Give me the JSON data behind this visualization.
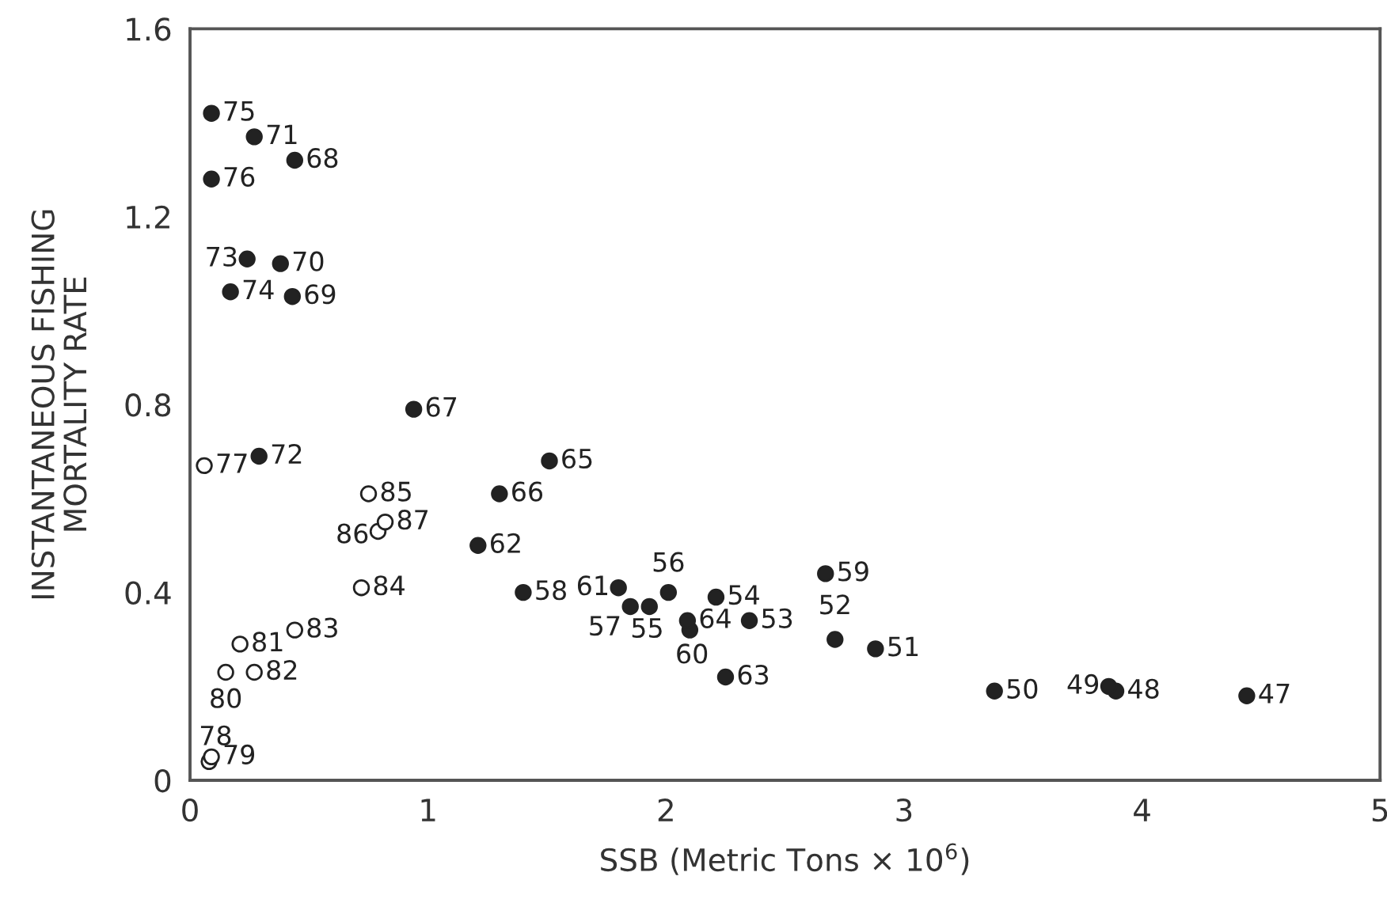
{
  "chart_data": {
    "type": "scatter",
    "xlabel": "SSB (Metric Tons × 10$^{6}$)",
    "ylabel": "INSTANTANEOUS FISHING\nMORTALITY RATE",
    "series": [
      {
        "color": "#222222",
        "x": [
          4.44,
          3.89,
          3.86,
          3.38,
          2.88,
          2.71,
          2.35,
          2.21,
          1.93,
          2.01,
          1.85,
          1.4,
          2.67,
          2.1,
          1.8,
          1.21,
          2.25,
          2.09,
          1.51,
          1.3,
          0.94,
          0.44,
          0.43,
          0.38,
          0.27,
          0.29,
          0.24,
          0.17,
          0.09,
          0.09
        ],
        "values": [
          0.18,
          0.19,
          0.2,
          0.19,
          0.28,
          0.3,
          0.34,
          0.39,
          0.37,
          0.4,
          0.37,
          0.4,
          0.44,
          0.32,
          0.41,
          0.5,
          0.22,
          0.34,
          0.68,
          0.61,
          0.79,
          1.32,
          1.03,
          1.1,
          1.37,
          0.69,
          1.11,
          1.04,
          1.42,
          1.28
        ]
      },
      {
        "color": "#ffffff",
        "x": [
          0.06,
          0.08,
          0.09,
          0.15,
          0.21,
          0.27,
          0.44,
          0.72,
          0.75,
          0.79,
          0.82
        ],
        "values": [
          0.67,
          0.04,
          0.05,
          0.23,
          0.29,
          0.23,
          0.32,
          0.41,
          0.61,
          0.53,
          0.55
        ]
      }
    ],
    "annotations": [
      {
        "text": "47",
        "x": 4.44,
        "y": 0.18
      },
      {
        "text": "48",
        "x": 3.89,
        "y": 0.19
      },
      {
        "text": "49",
        "x": 3.86,
        "y": 0.2
      },
      {
        "text": "50",
        "x": 3.38,
        "y": 0.19
      },
      {
        "text": "51",
        "x": 2.88,
        "y": 0.28
      },
      {
        "text": "52",
        "x": 2.71,
        "y": 0.3
      },
      {
        "text": "53",
        "x": 2.35,
        "y": 0.34
      },
      {
        "text": "54",
        "x": 2.21,
        "y": 0.39
      },
      {
        "text": "55",
        "x": 1.93,
        "y": 0.37
      },
      {
        "text": "56",
        "x": 2.01,
        "y": 0.4
      },
      {
        "text": "57",
        "x": 1.85,
        "y": 0.37
      },
      {
        "text": "58",
        "x": 1.4,
        "y": 0.4
      },
      {
        "text": "59",
        "x": 2.67,
        "y": 0.44
      },
      {
        "text": "60",
        "x": 2.1,
        "y": 0.32
      },
      {
        "text": "61",
        "x": 1.8,
        "y": 0.41
      },
      {
        "text": "62",
        "x": 1.21,
        "y": 0.5
      },
      {
        "text": "63",
        "x": 2.25,
        "y": 0.22
      },
      {
        "text": "64",
        "x": 2.09,
        "y": 0.34
      },
      {
        "text": "65",
        "x": 1.51,
        "y": 0.68
      },
      {
        "text": "66",
        "x": 1.3,
        "y": 0.61
      },
      {
        "text": "67",
        "x": 0.94,
        "y": 0.79
      },
      {
        "text": "68",
        "x": 0.44,
        "y": 1.32
      },
      {
        "text": "69",
        "x": 0.43,
        "y": 1.03
      },
      {
        "text": "70",
        "x": 0.38,
        "y": 1.1
      },
      {
        "text": "71",
        "x": 0.27,
        "y": 1.37
      },
      {
        "text": "72",
        "x": 0.29,
        "y": 0.69
      },
      {
        "text": "73",
        "x": 0.24,
        "y": 1.11
      },
      {
        "text": "74",
        "x": 0.17,
        "y": 1.04
      },
      {
        "text": "75",
        "x": 0.09,
        "y": 1.42
      },
      {
        "text": "76",
        "x": 0.09,
        "y": 1.28
      },
      {
        "text": "77",
        "x": 0.06,
        "y": 0.67
      },
      {
        "text": "78",
        "x": 0.08,
        "y": 0.04
      },
      {
        "text": "79",
        "x": 0.09,
        "y": 0.05
      },
      {
        "text": "80",
        "x": 0.15,
        "y": 0.23
      },
      {
        "text": "81",
        "x": 0.21,
        "y": 0.29
      },
      {
        "text": "82",
        "x": 0.27,
        "y": 0.23
      },
      {
        "text": "83",
        "x": 0.44,
        "y": 0.32
      },
      {
        "text": "84",
        "x": 0.72,
        "y": 0.41
      },
      {
        "text": "85",
        "x": 0.75,
        "y": 0.61
      },
      {
        "text": "86",
        "x": 0.79,
        "y": 0.53
      },
      {
        "text": "87",
        "x": 0.82,
        "y": 0.55
      }
    ],
    "xlim": [
      0,
      5
    ],
    "xticks": [
      0,
      1,
      2,
      3,
      4,
      5
    ],
    "ylim": [
      0,
      1.6
    ],
    "yticks": [
      0,
      0.4,
      0.8,
      1.2,
      1.6
    ],
    "marker": "circle",
    "grid": false,
    "legend": false
  }
}
